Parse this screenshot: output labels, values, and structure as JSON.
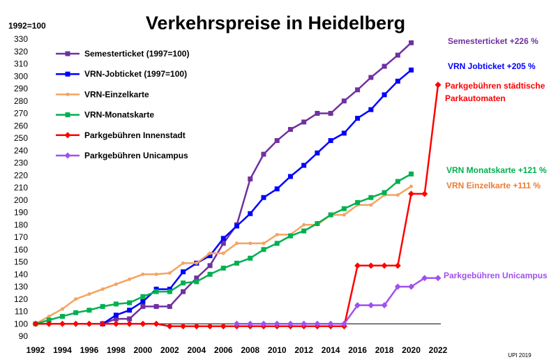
{
  "chart_data": {
    "type": "line",
    "title": "Verkehrspreise in Heidelberg",
    "yunit": "1992=100",
    "source": "UPI 2019",
    "xlim": [
      1992,
      2022
    ],
    "ylim": [
      90,
      330
    ],
    "ytick_step": 10,
    "xtick_step": 2,
    "grid": false,
    "legend_position": "top-left",
    "baseline": 100,
    "series": [
      {
        "name": "Semesterticket (1997=100)",
        "color": "#7030a0",
        "marker": "square",
        "x": [
          1997,
          1998,
          1999,
          2000,
          2001,
          2002,
          2003,
          2004,
          2005,
          2006,
          2007,
          2008,
          2009,
          2010,
          2011,
          2012,
          2013,
          2014,
          2015,
          2016,
          2017,
          2018,
          2019,
          2020
        ],
        "y": [
          100,
          104,
          104,
          114,
          114,
          114,
          126,
          137,
          147,
          165,
          180,
          217,
          237,
          248,
          257,
          263,
          270,
          270,
          280,
          289,
          299,
          308,
          317,
          327
        ]
      },
      {
        "name": "VRN-Jobticket (1997=100)",
        "color": "#0000ff",
        "marker": "square",
        "x": [
          1997,
          1998,
          1999,
          2000,
          2001,
          2002,
          2003,
          2004,
          2005,
          2006,
          2007,
          2008,
          2009,
          2010,
          2011,
          2012,
          2013,
          2014,
          2015,
          2016,
          2017,
          2018,
          2019,
          2020
        ],
        "y": [
          100,
          107,
          111,
          118,
          128,
          128,
          142,
          149,
          155,
          169,
          179,
          189,
          202,
          209,
          219,
          228,
          238,
          248,
          254,
          266,
          273,
          285,
          296,
          305
        ]
      },
      {
        "name": "VRN-Einzelkarte",
        "color": "#f4a460",
        "marker": "dot",
        "x": [
          1992,
          1993,
          1994,
          1995,
          1996,
          1997,
          1998,
          1999,
          2000,
          2001,
          2002,
          2003,
          2004,
          2005,
          2006,
          2007,
          2008,
          2009,
          2010,
          2011,
          2012,
          2013,
          2014,
          2015,
          2016,
          2017,
          2018,
          2019,
          2020
        ],
        "y": [
          100,
          106,
          112,
          120,
          124,
          128,
          132,
          136,
          140,
          140,
          141,
          149,
          149,
          157,
          157,
          165,
          165,
          165,
          172,
          172,
          180,
          180,
          188,
          188,
          196,
          196,
          204,
          204,
          211
        ]
      },
      {
        "name": "VRN-Monatskarte",
        "color": "#00b050",
        "marker": "square",
        "x": [
          1992,
          1993,
          1994,
          1995,
          1996,
          1997,
          1998,
          1999,
          2000,
          2001,
          2002,
          2003,
          2004,
          2005,
          2006,
          2007,
          2008,
          2009,
          2010,
          2011,
          2012,
          2013,
          2014,
          2015,
          2016,
          2017,
          2018,
          2019,
          2020
        ],
        "y": [
          100,
          103,
          106,
          109,
          111,
          114,
          116,
          117,
          122,
          126,
          126,
          133,
          134,
          140,
          145,
          149,
          153,
          160,
          165,
          171,
          175,
          181,
          188,
          193,
          198,
          202,
          206,
          215,
          221
        ]
      },
      {
        "name": "Parkgebühren Innenstadt",
        "color": "#ff0000",
        "marker": "diamond",
        "x": [
          1992,
          1993,
          1994,
          1995,
          1996,
          1997,
          1998,
          1999,
          2000,
          2001,
          2002,
          2003,
          2004,
          2005,
          2006,
          2007,
          2008,
          2009,
          2010,
          2011,
          2012,
          2013,
          2014,
          2015,
          2016,
          2017,
          2018,
          2019,
          2020,
          2021,
          2022
        ],
        "y": [
          100,
          100,
          100,
          100,
          100,
          100,
          100,
          100,
          100,
          100,
          98,
          98,
          98,
          98,
          98,
          98,
          98,
          98,
          98,
          98,
          98,
          98,
          98,
          98,
          147,
          147,
          147,
          147,
          205,
          205,
          293
        ]
      },
      {
        "name": "Parkgebühren Unicampus",
        "color": "#a050f0",
        "marker": "diamond",
        "x": [
          2007,
          2008,
          2009,
          2010,
          2011,
          2012,
          2013,
          2014,
          2015,
          2016,
          2017,
          2018,
          2019,
          2020,
          2021,
          2022
        ],
        "y": [
          100,
          100,
          100,
          100,
          100,
          100,
          100,
          100,
          100,
          115,
          115,
          115,
          130,
          130,
          137,
          137
        ]
      }
    ],
    "annotations": [
      {
        "key": "semester",
        "lines": [
          "Semesterticket +226 %"
        ],
        "color": "#7030a0"
      },
      {
        "key": "jobticket",
        "lines": [
          "VRN Jobticket +205 %"
        ],
        "color": "#0000ff"
      },
      {
        "key": "park",
        "lines": [
          "Parkgebühren städtische",
          "Parkautomaten"
        ],
        "color": "#ff0000"
      },
      {
        "key": "monats",
        "lines": [
          "VRN Monatskarte +121 %"
        ],
        "color": "#00b050"
      },
      {
        "key": "einzel",
        "lines": [
          "VRN Einzelkarte +111 %"
        ],
        "color": "#ed7d31"
      },
      {
        "key": "unicampus",
        "lines": [
          "Parkgebühren Unicampus"
        ],
        "color": "#a050f0"
      }
    ]
  }
}
